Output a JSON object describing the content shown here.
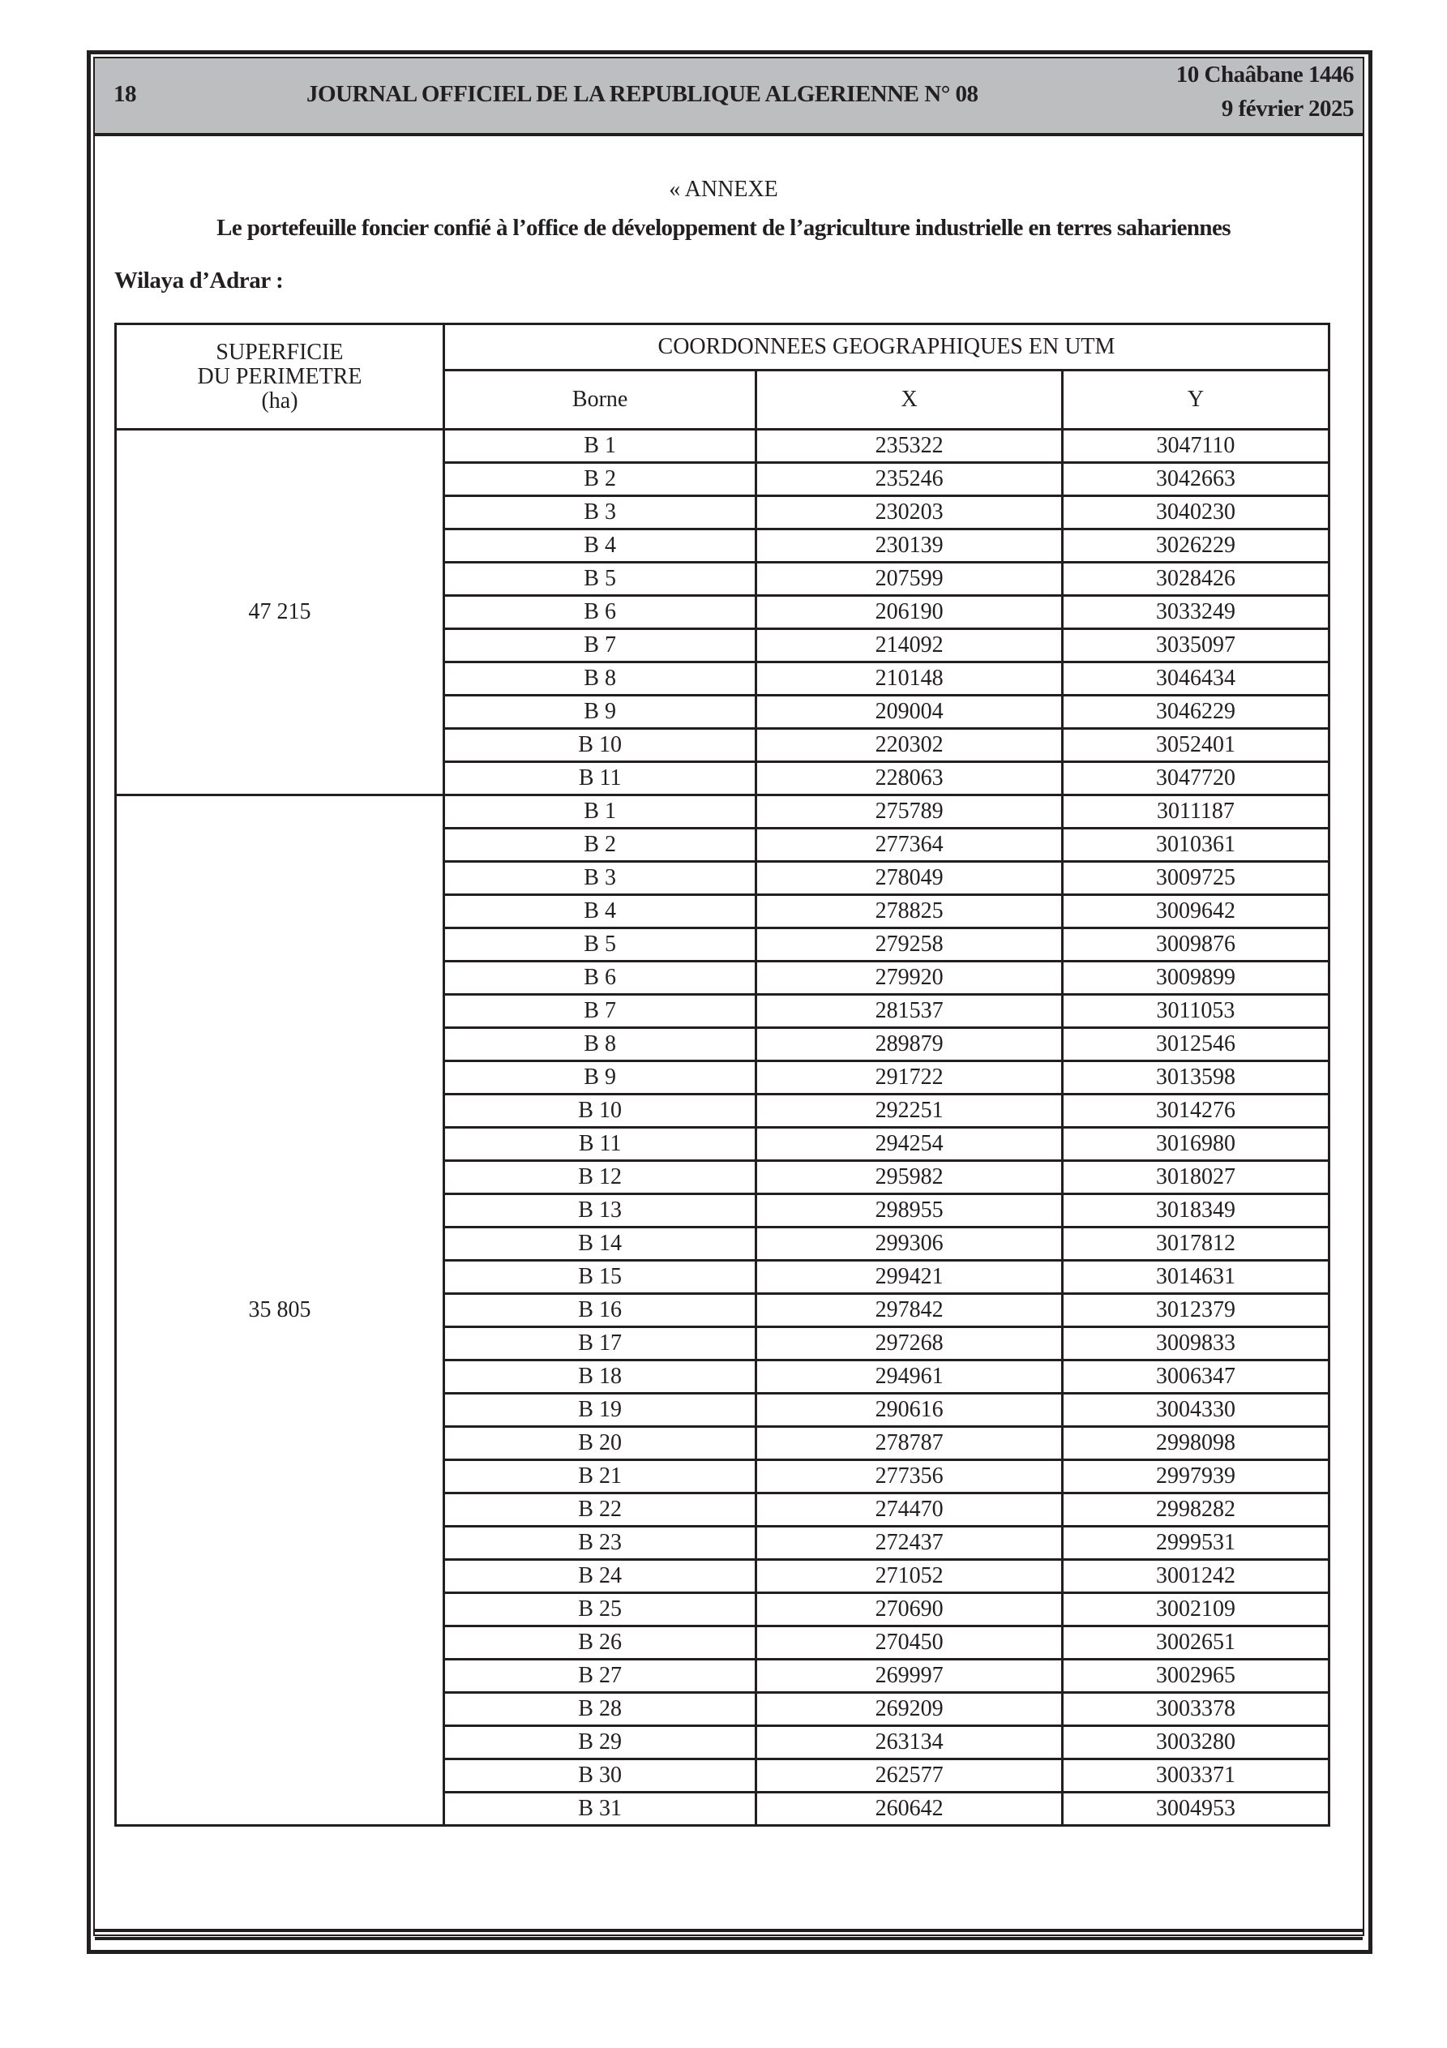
{
  "header": {
    "page_number": "18",
    "journal_title": "JOURNAL OFFICIEL DE LA REPUBLIQUE ALGERIENNE N° 08",
    "hijri_date": "10 Chaâbane 1446",
    "gregorian_date": "9 février 2025"
  },
  "annex": {
    "label": "« ANNEXE",
    "title": "Le portefeuille foncier confié à l’office de développement de l’agriculture industrielle en terres sahariennes",
    "wilaya": "Wilaya d’Adrar :"
  },
  "table": {
    "headers": {
      "area_line1": "SUPERFICIE",
      "area_line2": "DU PERIMETRE",
      "area_line3": "(ha)",
      "coords": "COORDONNEES GEOGRAPHIQUES EN UTM",
      "borne": "Borne",
      "x": "X",
      "y": "Y"
    },
    "perimeters": [
      {
        "area": "47 215",
        "rows": [
          [
            "B 1",
            "235322",
            "3047110"
          ],
          [
            "B 2",
            "235246",
            "3042663"
          ],
          [
            "B 3",
            "230203",
            "3040230"
          ],
          [
            "B 4",
            "230139",
            "3026229"
          ],
          [
            "B 5",
            "207599",
            "3028426"
          ],
          [
            "B 6",
            "206190",
            "3033249"
          ],
          [
            "B 7",
            "214092",
            "3035097"
          ],
          [
            "B 8",
            "210148",
            "3046434"
          ],
          [
            "B 9",
            "209004",
            "3046229"
          ],
          [
            "B 10",
            "220302",
            "3052401"
          ],
          [
            "B 11",
            "228063",
            "3047720"
          ]
        ]
      },
      {
        "area": "35 805",
        "rows": [
          [
            "B 1",
            "275789",
            "3011187"
          ],
          [
            "B 2",
            "277364",
            "3010361"
          ],
          [
            "B 3",
            "278049",
            "3009725"
          ],
          [
            "B 4",
            "278825",
            "3009642"
          ],
          [
            "B 5",
            "279258",
            "3009876"
          ],
          [
            "B 6",
            "279920",
            "3009899"
          ],
          [
            "B 7",
            "281537",
            "3011053"
          ],
          [
            "B 8",
            "289879",
            "3012546"
          ],
          [
            "B 9",
            "291722",
            "3013598"
          ],
          [
            "B 10",
            "292251",
            "3014276"
          ],
          [
            "B 11",
            "294254",
            "3016980"
          ],
          [
            "B 12",
            "295982",
            "3018027"
          ],
          [
            "B 13",
            "298955",
            "3018349"
          ],
          [
            "B 14",
            "299306",
            "3017812"
          ],
          [
            "B 15",
            "299421",
            "3014631"
          ],
          [
            "B 16",
            "297842",
            "3012379"
          ],
          [
            "B 17",
            "297268",
            "3009833"
          ],
          [
            "B 18",
            "294961",
            "3006347"
          ],
          [
            "B 19",
            "290616",
            "3004330"
          ],
          [
            "B 20",
            "278787",
            "2998098"
          ],
          [
            "B 21",
            "277356",
            "2997939"
          ],
          [
            "B 22",
            "274470",
            "2998282"
          ],
          [
            "B 23",
            "272437",
            "2999531"
          ],
          [
            "B 24",
            "271052",
            "3001242"
          ],
          [
            "B 25",
            "270690",
            "3002109"
          ],
          [
            "B 26",
            "270450",
            "3002651"
          ],
          [
            "B 27",
            "269997",
            "3002965"
          ],
          [
            "B 28",
            "269209",
            "3003378"
          ],
          [
            "B 29",
            "263134",
            "3003280"
          ],
          [
            "B 30",
            "262577",
            "3003371"
          ],
          [
            "B 31",
            "260642",
            "3004953"
          ]
        ]
      }
    ]
  }
}
